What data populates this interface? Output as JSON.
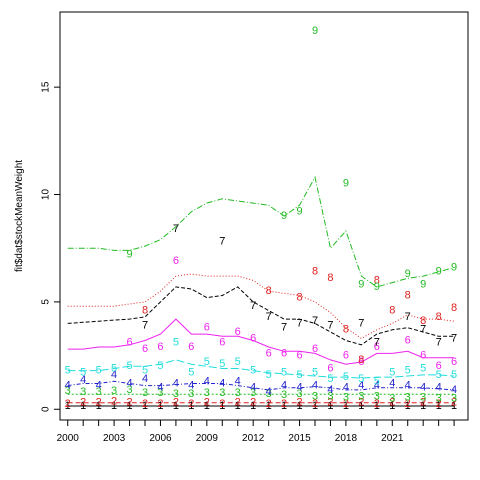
{
  "chart_data": {
    "type": "line",
    "ylabel": "fit$dat$stockMeanWeight",
    "xlabel": "",
    "xlim": [
      1999.5,
      2025.9
    ],
    "ylim": [
      -0.5,
      18.5
    ],
    "x_ticks": [
      2000,
      2003,
      2006,
      2009,
      2012,
      2015,
      2018,
      2021
    ],
    "y_ticks": [
      0,
      5,
      10,
      15
    ],
    "box": true,
    "grid": false,
    "legend": "none",
    "x": [
      2000,
      2001,
      2002,
      2003,
      2004,
      2005,
      2006,
      2007,
      2008,
      2009,
      2010,
      2011,
      2012,
      2013,
      2014,
      2015,
      2016,
      2017,
      2018,
      2019,
      2020,
      2021,
      2022,
      2023,
      2024,
      2025
    ],
    "series": [
      {
        "label": "1",
        "color": "#000000",
        "dash": "",
        "fitted": [
          0.15,
          0.15,
          0.15,
          0.15,
          0.15,
          0.15,
          0.15,
          0.15,
          0.15,
          0.15,
          0.15,
          0.15,
          0.15,
          0.15,
          0.15,
          0.15,
          0.15,
          0.15,
          0.15,
          0.15,
          0.15,
          0.15,
          0.15,
          0.15,
          0.15,
          0.15
        ],
        "observed": [
          0.15,
          0.15,
          0.15,
          0.15,
          0.15,
          0.15,
          0.15,
          0.15,
          0.15,
          0.15,
          0.15,
          0.15,
          0.15,
          0.15,
          0.15,
          0.15,
          0.15,
          0.15,
          0.15,
          0.15,
          0.15,
          0.15,
          0.15,
          0.15,
          0.15,
          0.15
        ]
      },
      {
        "label": "2",
        "color": "#df2020",
        "dash": "5,3",
        "fitted": [
          0.3,
          0.3,
          0.3,
          0.3,
          0.3,
          0.3,
          0.3,
          0.3,
          0.3,
          0.3,
          0.3,
          0.3,
          0.3,
          0.3,
          0.3,
          0.3,
          0.3,
          0.3,
          0.3,
          0.3,
          0.3,
          0.3,
          0.3,
          0.3,
          0.3,
          0.3
        ],
        "observed": [
          0.25,
          0.3,
          0.3,
          0.35,
          0.3,
          0.25,
          0.25,
          0.3,
          0.25,
          0.3,
          0.25,
          0.3,
          0.3,
          0.25,
          0.25,
          0.3,
          0.25,
          0.3,
          0.25,
          0.3,
          0.25,
          0.3,
          0.25,
          0.3,
          0.25,
          0.3
        ]
      },
      {
        "label": "3",
        "color": "#22bb22",
        "dash": "2,2",
        "fitted": [
          0.7,
          0.7,
          0.7,
          0.7,
          0.7,
          0.7,
          0.7,
          0.7,
          0.7,
          0.7,
          0.7,
          0.7,
          0.7,
          0.7,
          0.7,
          0.7,
          0.7,
          0.7,
          0.7,
          0.7,
          0.7,
          0.7,
          0.7,
          0.7,
          0.7,
          0.7
        ],
        "observed": [
          0.85,
          0.8,
          0.8,
          0.85,
          0.9,
          0.75,
          0.75,
          0.7,
          0.7,
          0.75,
          0.75,
          0.75,
          0.75,
          0.7,
          0.65,
          0.7,
          0.6,
          0.6,
          0.55,
          0.6,
          0.6,
          0.5,
          0.55,
          0.55,
          0.5,
          0.5
        ]
      },
      {
        "label": "4",
        "color": "#2222cc",
        "dash": "4,2,1,2",
        "fitted": [
          1.1,
          1.2,
          1.2,
          1.3,
          1.2,
          1.1,
          1.1,
          1.15,
          1.2,
          1.2,
          1.2,
          1.1,
          1.0,
          0.9,
          1.0,
          1.0,
          1.05,
          1.0,
          0.9,
          0.9,
          1.0,
          1.0,
          1.0,
          1.0,
          0.95,
          0.9
        ],
        "observed": [
          1.1,
          1.35,
          1.1,
          1.6,
          1.2,
          1.4,
          1.0,
          1.2,
          1.1,
          1.3,
          1.2,
          1.3,
          1.0,
          0.8,
          1.1,
          1.0,
          1.1,
          0.9,
          1.0,
          1.1,
          1.1,
          1.2,
          1.1,
          1.0,
          1.0,
          0.9
        ]
      },
      {
        "label": "5",
        "color": "#22dddd",
        "dash": "8,3",
        "fitted": [
          1.8,
          1.8,
          1.8,
          1.9,
          2.0,
          2.0,
          2.1,
          2.3,
          2.1,
          2.0,
          1.9,
          1.9,
          1.8,
          1.7,
          1.65,
          1.6,
          1.55,
          1.5,
          1.5,
          1.45,
          1.5,
          1.5,
          1.55,
          1.6,
          1.6,
          1.55
        ],
        "observed": [
          1.8,
          1.7,
          1.8,
          1.9,
          2.0,
          1.8,
          2.0,
          3.1,
          1.7,
          2.2,
          2.1,
          2.2,
          1.8,
          1.6,
          1.7,
          1.6,
          1.7,
          1.4,
          1.5,
          1.4,
          1.3,
          1.7,
          1.8,
          1.9,
          1.6,
          1.6
        ]
      },
      {
        "label": "6",
        "color": "#ee22ee",
        "dash": "",
        "fitted": [
          2.8,
          2.8,
          2.9,
          2.9,
          3.0,
          3.2,
          3.5,
          4.2,
          3.5,
          3.5,
          3.4,
          3.4,
          3.2,
          2.9,
          2.7,
          2.7,
          2.6,
          2.3,
          2.1,
          2.2,
          2.6,
          2.6,
          2.7,
          2.4,
          2.4,
          2.4
        ],
        "observed": [
          null,
          null,
          null,
          null,
          3.1,
          2.8,
          2.9,
          6.9,
          2.9,
          3.8,
          3.1,
          3.6,
          3.3,
          2.6,
          2.6,
          2.5,
          2.8,
          1.9,
          2.5,
          2.2,
          2.9,
          null,
          3.2,
          2.5,
          2.0,
          2.2
        ]
      },
      {
        "label": "7",
        "color": "#000000",
        "dash": "4,2",
        "fitted": [
          4.0,
          4.05,
          4.1,
          4.15,
          4.2,
          4.3,
          5.0,
          5.7,
          5.6,
          5.2,
          5.3,
          5.7,
          5.0,
          4.6,
          4.2,
          4.2,
          4.0,
          3.6,
          3.2,
          3.0,
          3.5,
          3.7,
          3.8,
          3.6,
          3.4,
          3.4
        ],
        "observed": [
          null,
          null,
          null,
          null,
          null,
          3.9,
          null,
          8.4,
          null,
          null,
          7.8,
          null,
          4.8,
          4.3,
          3.8,
          4.0,
          4.1,
          3.9,
          null,
          4.0,
          3.1,
          null,
          4.3,
          3.7,
          3.1,
          3.3
        ]
      },
      {
        "label": "8",
        "color": "#df2020",
        "dash": "1,2",
        "fitted": [
          4.8,
          4.8,
          4.8,
          4.8,
          4.9,
          5.0,
          5.5,
          6.2,
          6.3,
          6.2,
          6.2,
          6.2,
          6.0,
          5.5,
          5.4,
          5.3,
          5.0,
          4.5,
          3.8,
          3.3,
          3.7,
          4.0,
          4.4,
          4.2,
          4.2,
          4.1
        ],
        "observed": [
          null,
          null,
          null,
          null,
          null,
          4.6,
          null,
          null,
          null,
          null,
          null,
          null,
          null,
          5.5,
          null,
          5.2,
          6.4,
          6.1,
          3.7,
          2.3,
          6.0,
          4.6,
          5.3,
          4.1,
          4.3,
          4.7
        ]
      },
      {
        "label": "9",
        "color": "#22bb22",
        "dash": "6,2,1,2",
        "fitted": [
          7.5,
          7.5,
          7.5,
          7.4,
          7.4,
          7.6,
          7.9,
          8.5,
          9.2,
          9.6,
          9.8,
          9.7,
          9.6,
          9.5,
          9.0,
          9.5,
          10.8,
          7.5,
          8.3,
          6.2,
          5.7,
          5.9,
          6.1,
          6.2,
          6.4,
          6.6
        ],
        "observed": [
          null,
          null,
          null,
          null,
          7.2,
          null,
          null,
          null,
          null,
          null,
          null,
          null,
          null,
          null,
          9.0,
          9.2,
          17.6,
          null,
          10.5,
          5.8,
          5.7,
          null,
          6.3,
          5.8,
          6.4,
          6.6
        ]
      }
    ]
  }
}
